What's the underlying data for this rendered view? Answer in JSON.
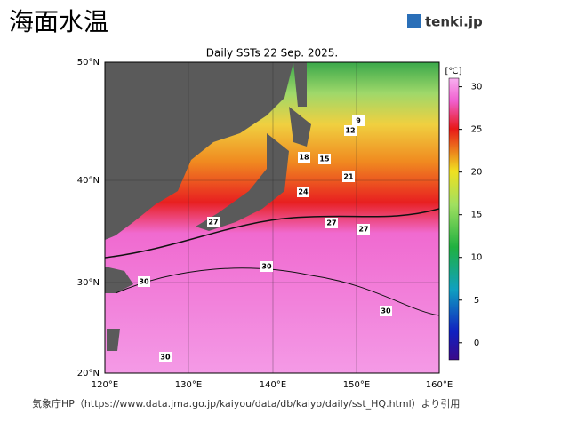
{
  "header": {
    "title": "海面水温",
    "logo": "tenki.jp"
  },
  "map": {
    "title": "Daily SSTs 22 Sep. 2025.",
    "lat_labels": [
      "50°N",
      "40°N",
      "30°N",
      "20°N"
    ],
    "lon_labels": [
      "120°E",
      "130°E",
      "140°E",
      "150°E",
      "160°E"
    ],
    "contour_labels": [
      "9",
      "12",
      "18",
      "15",
      "21",
      "24",
      "27",
      "27",
      "27",
      "30",
      "30",
      "30",
      "30"
    ]
  },
  "colorbar": {
    "unit": "[℃]",
    "lim": [
      -2,
      31
    ],
    "ticks": [
      0,
      5,
      10,
      15,
      20,
      25,
      30
    ]
  },
  "footer": {
    "source": "気象庁HP（https://www.data.jma.go.jp/kaiyou/data/db/kaiyo/daily/sst_HQ.html）より引用"
  }
}
